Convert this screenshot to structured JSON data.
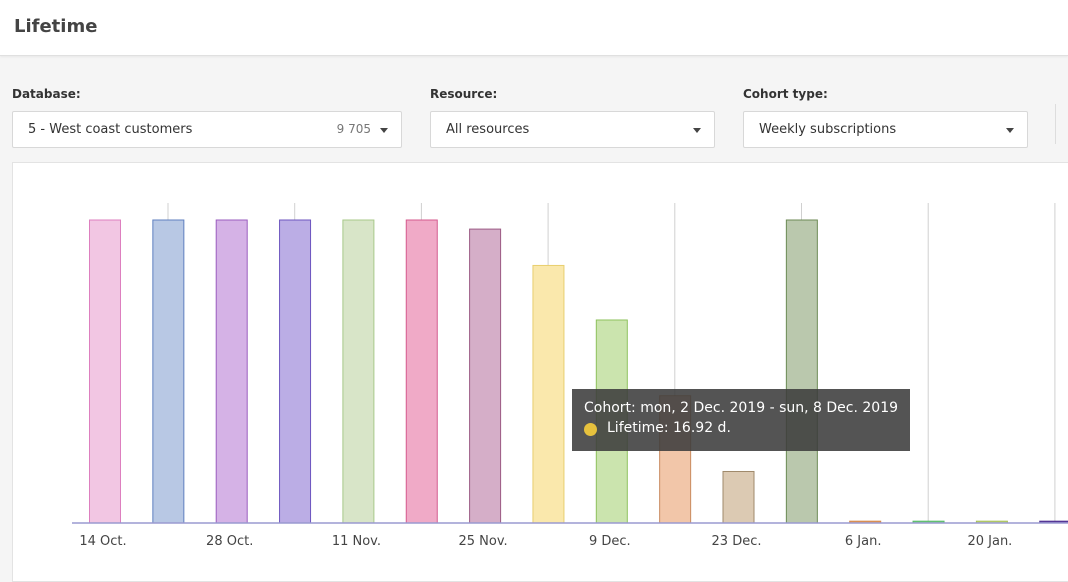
{
  "header": {
    "title": "Lifetime"
  },
  "filters": {
    "database": {
      "label": "Database:",
      "value": "5 - West coast customers",
      "count": "9 705"
    },
    "resource": {
      "label": "Resource:",
      "value": "All resources"
    },
    "cohort_type": {
      "label": "Cohort type:",
      "value": "Weekly subscriptions"
    }
  },
  "tooltip": {
    "cohort": "Cohort: mon, 2 Dec. 2019 - sun, 8 Dec. 2019",
    "value": "Lifetime: 16.92 d.",
    "color": "#e6c13d"
  },
  "chart_data": {
    "type": "bar",
    "ylim": [
      0,
      100
    ],
    "x_tick_labels": [
      "14 Oct.",
      "28 Oct.",
      "11 Nov.",
      "25 Nov.",
      "9 Dec.",
      "23 Dec.",
      "6 Jan.",
      "20 Jan."
    ],
    "bars": [
      {
        "week": "14 Oct.",
        "value": 100,
        "fill": "#f2c6e3",
        "stroke": "#dd7fbf"
      },
      {
        "week": "21 Oct.",
        "value": 100,
        "fill": "#b8c8e4",
        "stroke": "#5f7fbf"
      },
      {
        "week": "28 Oct.",
        "value": 100,
        "fill": "#d5b2e6",
        "stroke": "#9a5cbf"
      },
      {
        "week": "4 Nov.",
        "value": 100,
        "fill": "#bbade5",
        "stroke": "#6d55bf"
      },
      {
        "week": "11 Nov.",
        "value": 100,
        "fill": "#d8e5c8",
        "stroke": "#a8c98a"
      },
      {
        "week": "18 Nov.",
        "value": 100,
        "fill": "#f0aac7",
        "stroke": "#d45a8e"
      },
      {
        "week": "25 Nov.",
        "value": 97,
        "fill": "#d5aec8",
        "stroke": "#9b5a84"
      },
      {
        "week": "2 Dec.",
        "value": 85,
        "fill": "#fae8ac",
        "stroke": "#e8cf6e"
      },
      {
        "week": "9 Dec.",
        "value": 67,
        "fill": "#cbe4ae",
        "stroke": "#8ec15d"
      },
      {
        "week": "16 Dec.",
        "value": 42,
        "fill": "#f2c6a9",
        "stroke": "#c98a5e"
      },
      {
        "week": "23 Dec.",
        "value": 17,
        "fill": "#dccab3",
        "stroke": "#9f8a6b"
      },
      {
        "week": "30 Dec.",
        "value": 100,
        "fill": "#bac8ad",
        "stroke": "#6c8a55"
      },
      {
        "week": "6 Jan.",
        "value": 0.6,
        "fill": "#e9a36a",
        "stroke": "#d48648"
      },
      {
        "week": "13 Jan.",
        "value": 0.6,
        "fill": "#7ed08a",
        "stroke": "#54b865"
      },
      {
        "week": "20 Jan.",
        "value": 0.6,
        "fill": "#c7d986",
        "stroke": "#a6bf55"
      },
      {
        "week": "27 Jan.",
        "value": 0.6,
        "fill": "#6a4aa8",
        "stroke": "#4b2e8f"
      }
    ]
  }
}
